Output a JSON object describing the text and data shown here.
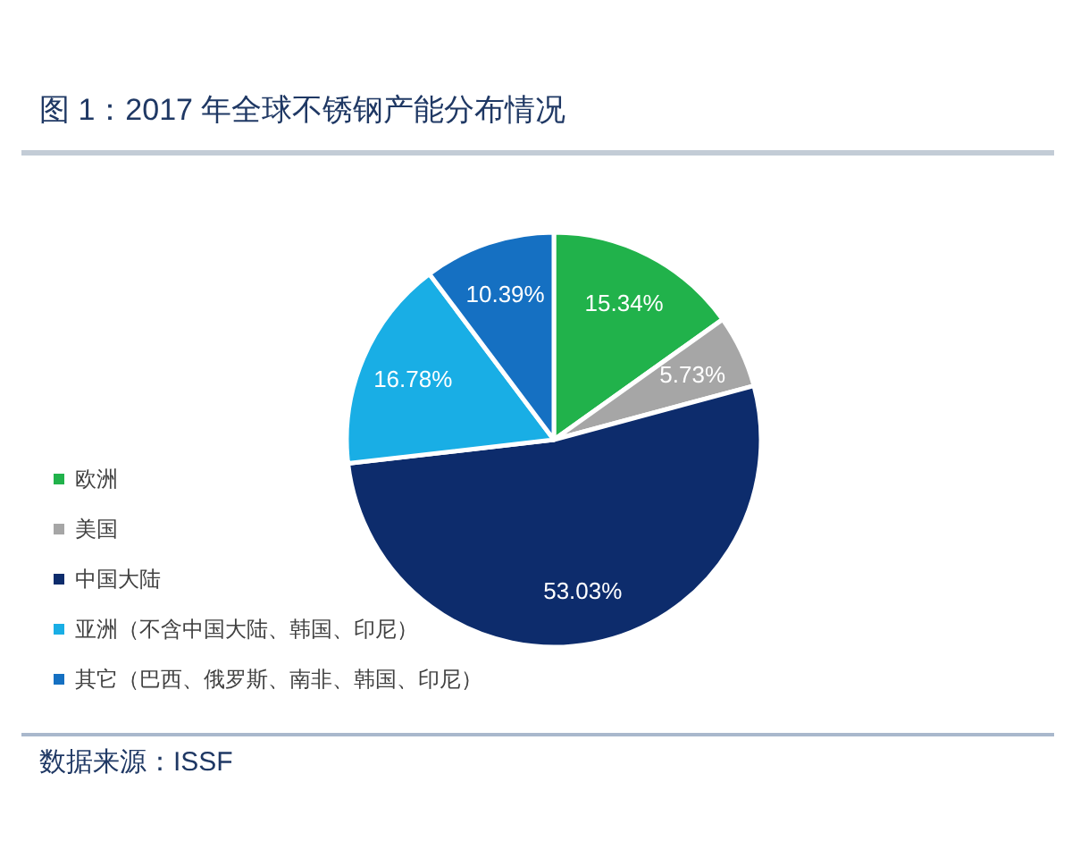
{
  "chart_data": {
    "type": "pie",
    "title": "图 1：2017 年全球不锈钢产能分布情况",
    "categories": [
      "欧洲",
      "美国",
      "中国大陆",
      "亚洲（不含中国大陆、韩国、印尼）",
      "其它（巴西、俄罗斯、南非、韩国、印尼）"
    ],
    "values": [
      15.34,
      5.73,
      53.03,
      16.78,
      10.39
    ],
    "colors": [
      "#21b24b",
      "#a6a6a6",
      "#0d2c6c",
      "#19aee5",
      "#1570c2"
    ],
    "value_labels": [
      "15.34%",
      "5.73%",
      "53.03%",
      "16.78%",
      "10.39%"
    ],
    "legend": "bottom left",
    "annotations": [
      "数据来源：ISSF"
    ]
  }
}
